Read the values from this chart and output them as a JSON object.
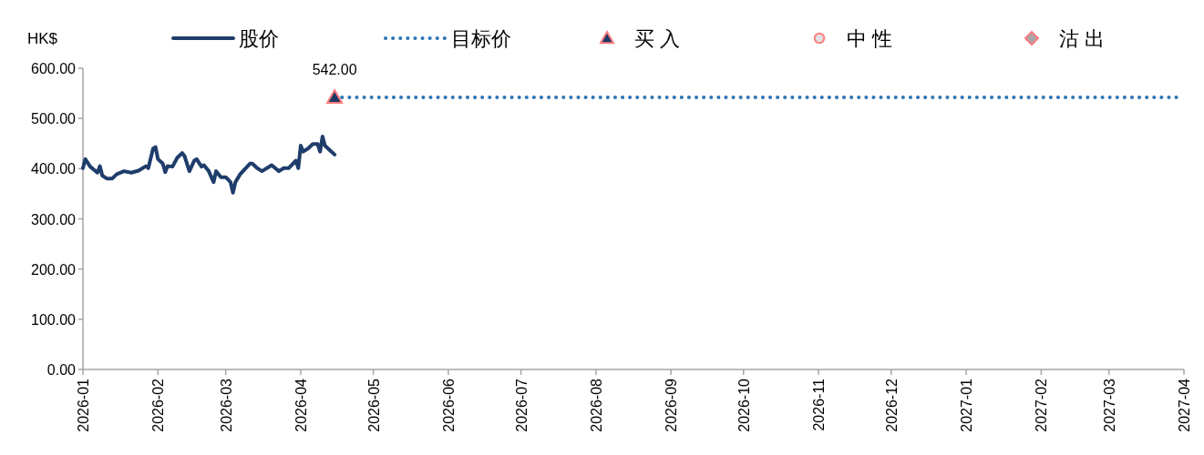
{
  "chart_data": {
    "type": "line",
    "ylabel": "HK$",
    "legend": "top",
    "grid": false,
    "xlim": [
      "2026-01",
      "2027-04"
    ],
    "xticks": [
      "2026-01",
      "2026-02",
      "2026-03",
      "2026-04",
      "2026-05",
      "2026-06",
      "2026-07",
      "2026-08",
      "2026-09",
      "2026-10",
      "2026-11",
      "2026-12",
      "2027-01",
      "2027-02",
      "2027-03",
      "2027-04"
    ],
    "ylim": [
      0,
      600
    ],
    "yticks": [
      {
        "value": 0,
        "label": "0.00"
      },
      {
        "value": 100,
        "label": "100.00"
      },
      {
        "value": 200,
        "label": "200.00"
      },
      {
        "value": 300,
        "label": "300.00"
      },
      {
        "value": 400,
        "label": "400.00"
      },
      {
        "value": 500,
        "label": "500.00"
      },
      {
        "value": 600,
        "label": "600.00"
      }
    ],
    "series": [
      {
        "name": "股价",
        "color": "#1f3d6b",
        "line_style": "solid",
        "marker": "none",
        "x": [
          "2026-01-01",
          "2026-01-02",
          "2026-01-04",
          "2026-01-07",
          "2026-01-08",
          "2026-01-09",
          "2026-01-11",
          "2026-01-13",
          "2026-01-15",
          "2026-01-18",
          "2026-01-21",
          "2026-01-24",
          "2026-01-27",
          "2026-01-28",
          "2026-01-30",
          "2026-01-31",
          "2026-02-01",
          "2026-02-03",
          "2026-02-04",
          "2026-02-05",
          "2026-02-07",
          "2026-02-09",
          "2026-02-11",
          "2026-02-12",
          "2026-02-14",
          "2026-02-16",
          "2026-02-17",
          "2026-02-19",
          "2026-02-20",
          "2026-02-22",
          "2026-02-24",
          "2026-02-25",
          "2026-02-27",
          "2026-03-01",
          "2026-03-03",
          "2026-03-04",
          "2026-03-05",
          "2026-03-07",
          "2026-03-11",
          "2026-03-12",
          "2026-03-14",
          "2026-03-16",
          "2026-03-20",
          "2026-03-23",
          "2026-03-25",
          "2026-03-27",
          "2026-03-30",
          "2026-03-31",
          "2026-04-01",
          "2026-04-02",
          "2026-04-04",
          "2026-04-06",
          "2026-04-08",
          "2026-04-09",
          "2026-04-10",
          "2026-04-11",
          "2026-04-13",
          "2026-04-15"
        ],
        "values": [
          401,
          419,
          404,
          392,
          405,
          386,
          380,
          380,
          389,
          395,
          392,
          396,
          405,
          401,
          440,
          443,
          419,
          410,
          393,
          405,
          404,
          422,
          431,
          425,
          395,
          416,
          419,
          404,
          407,
          395,
          373,
          395,
          383,
          383,
          373,
          352,
          373,
          389,
          410,
          410,
          401,
          395,
          407,
          395,
          401,
          401,
          416,
          401,
          446,
          434,
          440,
          449,
          449,
          434,
          464,
          446,
          437,
          428
        ]
      },
      {
        "name": "目标价",
        "type": "line",
        "color": "#2e75b6",
        "line_style": "dotted",
        "marker": "none",
        "x": [
          "2026-04-15",
          "2027-03-29"
        ],
        "values": [
          542,
          542
        ]
      },
      {
        "name": "买入",
        "type": "scatter",
        "color": "#1f3864",
        "marker": "triangle",
        "x": [
          "2026-04-15"
        ],
        "values": [
          542
        ]
      },
      {
        "name": "中性",
        "type": "scatter",
        "color": "#e0e0e0",
        "marker": "circle"
      },
      {
        "name": "沽出",
        "type": "scatter",
        "color": "#a6a6a6",
        "marker": "diamond"
      }
    ],
    "annotations": [
      {
        "text": "542.00",
        "x": "2026-04-15",
        "y": 542
      }
    ]
  }
}
